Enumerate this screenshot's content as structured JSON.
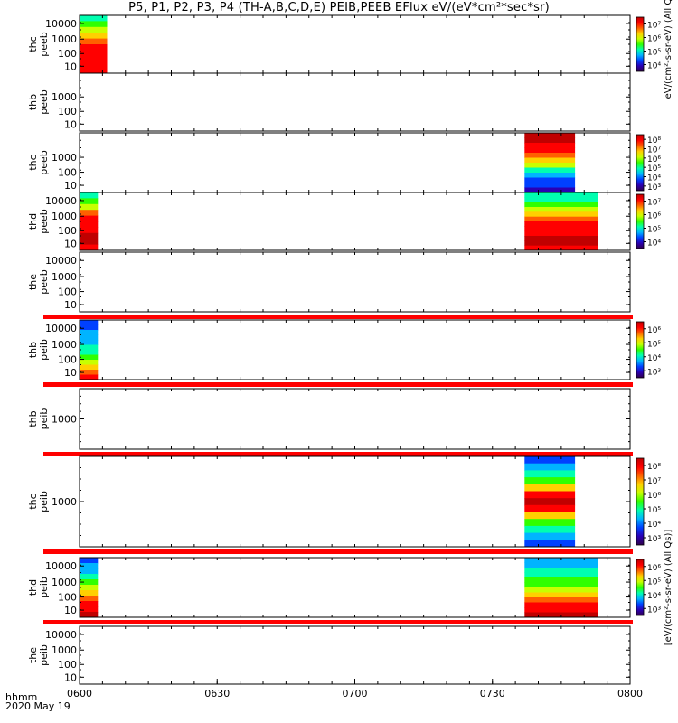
{
  "title": "P5, P1, P2, P3, P4 (TH-A,B,C,D,E) PEIB,PEEB EFlux eV/(eV*cm²*sec*sr)",
  "footer": {
    "time_label": "hhmm",
    "date_label": "2020 May 19"
  },
  "colors": {
    "ramp": [
      "#30004a",
      "#2a00b4",
      "#0040ff",
      "#00b4ff",
      "#00ffb0",
      "#30ff00",
      "#c8ff00",
      "#ffd000",
      "#ff6000",
      "#ff0000",
      "#c00000"
    ],
    "band_red": "#ff0000"
  },
  "chart_data": {
    "type": "heatmap",
    "x_tick_labels": [
      "0600",
      "0630",
      "0700",
      "0730",
      "0800"
    ],
    "xlim": [
      "0600",
      "0800"
    ],
    "panels": [
      {
        "label1": "thc",
        "label2": "peeb",
        "yticks": [
          "10",
          "100",
          "1000",
          "10000"
        ],
        "log": true,
        "cbar_ticks": [
          "10⁷",
          "10⁶",
          "10⁵",
          "10⁴"
        ],
        "cbar_title": "eV/(cm²-s-sr-eV) (All Qs)",
        "data_blocks": [
          {
            "t_start": "0600",
            "t_end": "0606",
            "profile": [
              4,
              5,
              6,
              7,
              8,
              9,
              9,
              9,
              9,
              9
            ]
          }
        ],
        "red_band": false
      },
      {
        "label1": "thb",
        "label2": "peeb",
        "yticks": [
          "10",
          "100",
          "1000"
        ],
        "log": true,
        "cbar_ticks": [],
        "cbar_title": "",
        "data_blocks": [],
        "red_band": false
      },
      {
        "label1": "thc",
        "label2": "peeb",
        "yticks": [
          "10",
          "100",
          "1000"
        ],
        "log": true,
        "cbar_ticks": [
          "10⁸",
          "10⁷",
          "10⁶",
          "10⁵",
          "10⁴",
          "10³"
        ],
        "cbar_title": "",
        "data_blocks": [
          {
            "t_start": "0737",
            "t_end": "0748",
            "profile": [
              10,
              10,
              9,
              9,
              8,
              7,
              6,
              4,
              3,
              2,
              2,
              1
            ]
          }
        ],
        "red_band": false
      },
      {
        "label1": "thd",
        "label2": "peeb",
        "yticks": [
          "10",
          "100",
          "1000",
          "10000"
        ],
        "log": true,
        "cbar_ticks": [
          "10⁷",
          "10⁶",
          "10⁵",
          "10⁴"
        ],
        "cbar_title": "",
        "data_blocks": [
          {
            "t_start": "0600",
            "t_end": "0604",
            "profile": [
              4,
              5,
              6,
              8,
              9,
              9,
              9,
              10,
              10,
              9
            ]
          },
          {
            "t_start": "0737",
            "t_end": "0753",
            "profile": [
              4,
              4,
              5,
              6,
              7,
              8,
              9,
              9,
              9,
              10,
              10,
              9
            ]
          }
        ],
        "red_band": false
      },
      {
        "label1": "the",
        "label2": "peeb",
        "yticks": [
          "10",
          "100",
          "1000",
          "10000"
        ],
        "log": true,
        "cbar_ticks": [],
        "cbar_title": "",
        "data_blocks": [],
        "red_band": true
      },
      {
        "label1": "thb",
        "label2": "peib",
        "yticks": [
          "10",
          "100",
          "1000",
          "10000"
        ],
        "log": true,
        "cbar_ticks": [
          "10⁶",
          "10⁵",
          "10⁴",
          "10³"
        ],
        "cbar_title": "",
        "data_blocks": [
          {
            "t_start": "0600",
            "t_end": "0604",
            "profile": [
              2,
              2,
              3,
              3,
              3,
              4,
              4,
              5,
              6,
              7,
              8,
              9
            ]
          }
        ],
        "red_band": true
      },
      {
        "label1": "thb",
        "label2": "peib",
        "yticks": [
          "1000"
        ],
        "log": true,
        "cbar_ticks": [],
        "cbar_title": "",
        "data_blocks": [],
        "red_band": true
      },
      {
        "label1": "thc",
        "label2": "peib",
        "yticks": [
          "1000"
        ],
        "log": true,
        "cbar_ticks": [
          "10⁸",
          "10⁷",
          "10⁶",
          "10⁵",
          "10⁴",
          "10³"
        ],
        "cbar_title": "",
        "data_blocks": [
          {
            "t_start": "0737",
            "t_end": "0748",
            "profile": [
              2,
              3,
              4,
              5,
              7,
              9,
              10,
              9,
              7,
              5,
              4,
              3,
              2
            ]
          }
        ],
        "red_band": true
      },
      {
        "label1": "thd",
        "label2": "peib",
        "yticks": [
          "10",
          "100",
          "1000",
          "10000"
        ],
        "log": true,
        "cbar_ticks": [
          "10⁶",
          "10⁵",
          "10⁴",
          "10³"
        ],
        "cbar_title": "[eV/(cm²-s-sr-eV) (All Qs)]",
        "data_blocks": [
          {
            "t_start": "0600",
            "t_end": "0604",
            "profile": [
              2,
              3,
              3,
              4,
              5,
              6,
              7,
              8,
              9,
              9,
              10
            ]
          },
          {
            "t_start": "0737",
            "t_end": "0753",
            "profile": [
              3,
              3,
              4,
              4,
              5,
              5,
              6,
              7,
              8,
              9,
              9,
              10
            ]
          }
        ],
        "red_band": true
      },
      {
        "label1": "the",
        "label2": "peib",
        "yticks": [
          "10",
          "100",
          "1000",
          "10000"
        ],
        "log": true,
        "cbar_ticks": [],
        "cbar_title": "",
        "data_blocks": [],
        "red_band": false
      }
    ]
  }
}
